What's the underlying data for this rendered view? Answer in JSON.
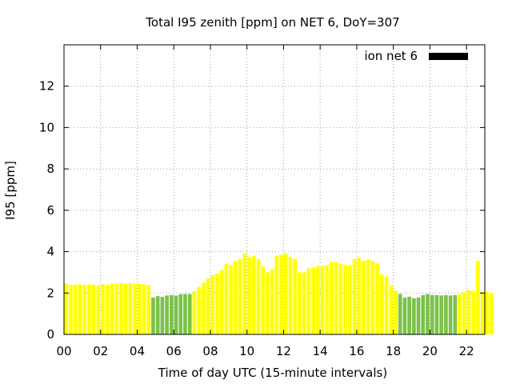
{
  "chart_data": {
    "type": "bar",
    "title": "Total I95 zenith [ppm] on NET 6, DoY=307",
    "xlabel": "Time of day UTC (15-minute intervals)",
    "ylabel": "I95 [ppm]",
    "legend": {
      "label": "ion net 6",
      "position": "top-right"
    },
    "xlim": [
      0,
      23
    ],
    "ylim": [
      0,
      14
    ],
    "x_ticks": [
      {
        "value": 0,
        "label": "00"
      },
      {
        "value": 2,
        "label": "02"
      },
      {
        "value": 4,
        "label": "04"
      },
      {
        "value": 6,
        "label": "06"
      },
      {
        "value": 8,
        "label": "08"
      },
      {
        "value": 10,
        "label": "10"
      },
      {
        "value": 12,
        "label": "12"
      },
      {
        "value": 14,
        "label": "14"
      },
      {
        "value": 16,
        "label": "16"
      },
      {
        "value": 18,
        "label": "18"
      },
      {
        "value": 20,
        "label": "20"
      },
      {
        "value": 22,
        "label": "22"
      }
    ],
    "y_ticks": [
      {
        "value": 0,
        "label": "0"
      },
      {
        "value": 2,
        "label": "2"
      },
      {
        "value": 4,
        "label": "4"
      },
      {
        "value": 6,
        "label": "6"
      },
      {
        "value": 8,
        "label": "8"
      },
      {
        "value": 10,
        "label": "10"
      },
      {
        "value": 12,
        "label": "12"
      }
    ],
    "grid": true,
    "interval_hours": 0.25,
    "start_hour": 0,
    "colors": {
      "quiet": "#ffff00",
      "night": "#7cc24a",
      "legend": "#000000",
      "grid": "#a0a0a0"
    },
    "values": [
      2.45,
      2.4,
      2.4,
      2.42,
      2.4,
      2.42,
      2.4,
      2.38,
      2.42,
      2.4,
      2.45,
      2.45,
      2.48,
      2.45,
      2.48,
      2.45,
      2.45,
      2.42,
      2.38,
      1.78,
      1.85,
      1.82,
      1.88,
      1.9,
      1.88,
      1.95,
      1.95,
      1.95,
      2.1,
      2.3,
      2.5,
      2.7,
      2.85,
      2.95,
      3.1,
      3.4,
      3.35,
      3.55,
      3.65,
      3.9,
      3.75,
      3.8,
      3.65,
      3.3,
      3.0,
      3.15,
      3.8,
      3.85,
      3.9,
      3.75,
      3.65,
      3.0,
      3.0,
      3.2,
      3.25,
      3.3,
      3.3,
      3.35,
      3.5,
      3.5,
      3.4,
      3.35,
      3.35,
      3.65,
      3.7,
      3.55,
      3.6,
      3.55,
      3.45,
      2.9,
      2.8,
      2.35,
      2.1,
      1.95,
      1.78,
      1.82,
      1.75,
      1.78,
      1.9,
      1.95,
      1.9,
      1.9,
      1.88,
      1.9,
      1.88,
      1.9,
      1.95,
      2.05,
      2.15,
      2.1,
      3.55,
      2.05,
      2.05,
      2.0
    ],
    "night_ranges": [
      [
        19,
        27
      ],
      [
        73,
        85
      ]
    ]
  }
}
